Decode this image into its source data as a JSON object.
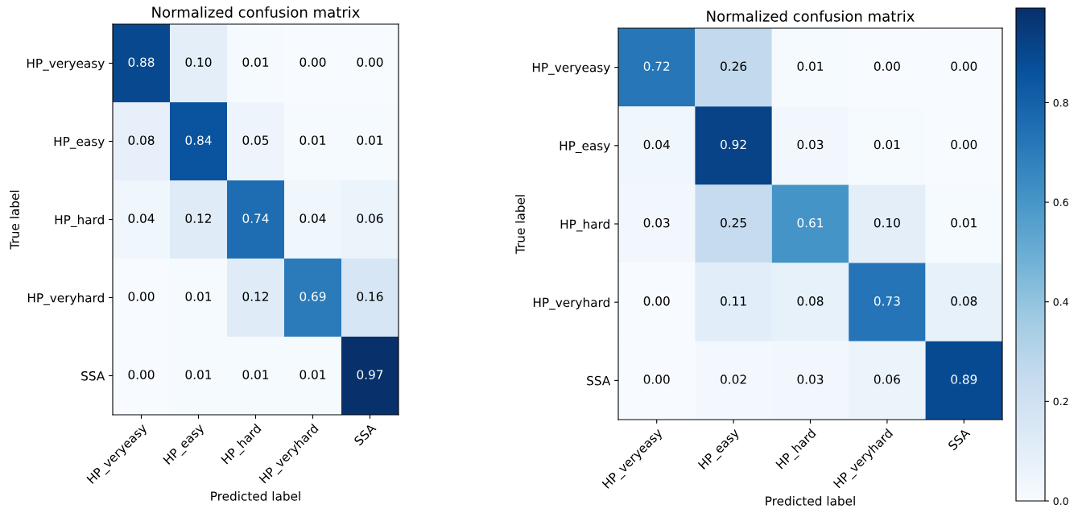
{
  "chart_data": [
    {
      "type": "heatmap",
      "title": "Normalized confusion matrix",
      "xlabel": "Predicted label",
      "ylabel": "True label",
      "categories": [
        "HP_veryeasy",
        "HP_easy",
        "HP_hard",
        "HP_veryhard",
        "SSA"
      ],
      "y_categories": [
        "HP_veryeasy",
        "HP_easy",
        "HP_hard",
        "HP_veryhard",
        "SSA"
      ],
      "data_labels": true,
      "cells": [
        [
          0.88,
          0.1,
          0.01,
          0.0,
          0.0
        ],
        [
          0.08,
          0.84,
          0.05,
          0.01,
          0.01
        ],
        [
          0.04,
          0.12,
          0.74,
          0.04,
          0.06
        ],
        [
          0.0,
          0.01,
          0.12,
          0.69,
          0.16
        ],
        [
          0.0,
          0.01,
          0.01,
          0.01,
          0.97
        ]
      ],
      "cell_labels": [
        [
          "0.88",
          "0.10",
          "0.01",
          "0.00",
          "0.00"
        ],
        [
          "0.08",
          "0.84",
          "0.05",
          "0.01",
          "0.01"
        ],
        [
          "0.04",
          "0.12",
          "0.74",
          "0.04",
          "0.06"
        ],
        [
          "0.00",
          "0.01",
          "0.12",
          "0.69",
          "0.16"
        ],
        [
          "0.00",
          "0.01",
          "0.01",
          "0.01",
          "0.97"
        ]
      ]
    },
    {
      "type": "heatmap",
      "title": "Normalized confusion matrix",
      "xlabel": "Predicted label",
      "ylabel": "True label",
      "categories": [
        "HP_veryeasy",
        "HP_easy",
        "HP_hard",
        "HP_veryhard",
        "SSA"
      ],
      "y_categories": [
        "HP_veryeasy",
        "HP_easy",
        "HP_hard",
        "HP_veryhard",
        "SSA"
      ],
      "data_labels": true,
      "cells": [
        [
          0.72,
          0.26,
          0.01,
          0.0,
          0.0
        ],
        [
          0.04,
          0.92,
          0.03,
          0.01,
          0.0
        ],
        [
          0.03,
          0.25,
          0.61,
          0.1,
          0.01
        ],
        [
          0.0,
          0.11,
          0.08,
          0.73,
          0.08
        ],
        [
          0.0,
          0.02,
          0.03,
          0.06,
          0.89
        ]
      ],
      "cell_labels": [
        [
          "0.72",
          "0.26",
          "0.01",
          "0.00",
          "0.00"
        ],
        [
          "0.04",
          "0.92",
          "0.03",
          "0.01",
          "0.00"
        ],
        [
          "0.03",
          "0.25",
          "0.61",
          "0.10",
          "0.01"
        ],
        [
          "0.00",
          "0.11",
          "0.08",
          "0.73",
          "0.08"
        ],
        [
          "0.00",
          "0.02",
          "0.03",
          "0.06",
          "0.89"
        ]
      ],
      "clim": [
        0,
        0.99
      ],
      "cticks": [
        {
          "value": 0,
          "label": "0.0"
        },
        {
          "value": 0.2,
          "label": "0.2"
        },
        {
          "value": 0.4,
          "label": "0.4"
        },
        {
          "value": 0.6,
          "label": "0.6"
        },
        {
          "value": 0.8,
          "label": "0.8"
        }
      ]
    }
  ]
}
